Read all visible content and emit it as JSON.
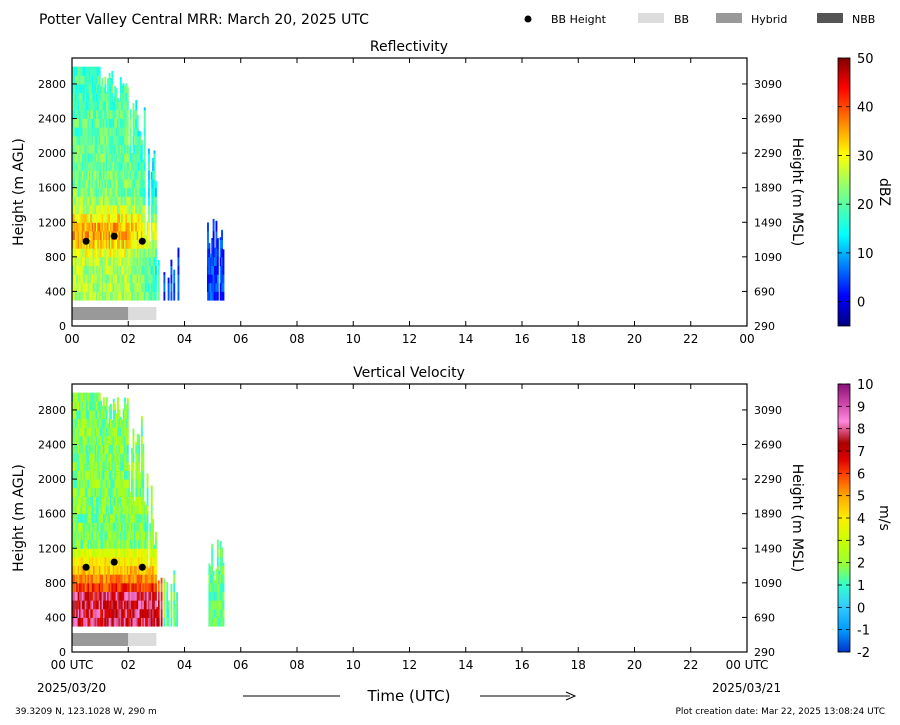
{
  "header": {
    "title": "Potter Valley Central MRR:  March 20, 2025 UTC",
    "legend": [
      {
        "label": "BB Height",
        "kind": "dot",
        "color": "#000000"
      },
      {
        "label": "BB",
        "kind": "patch",
        "color": "#dcdcdc"
      },
      {
        "label": "Hybrid",
        "kind": "patch",
        "color": "#999999"
      },
      {
        "label": "NBB",
        "kind": "patch",
        "color": "#555555"
      }
    ]
  },
  "footer": {
    "location": "39.3209 N, 123.1028 W, 290 m",
    "creation": "Plot creation date: Mar 22, 2025 13:08:24 UTC",
    "xlabel": "Time (UTC)",
    "start_date": "2025/03/20",
    "end_date": "2025/03/21"
  },
  "chart_data": [
    {
      "type": "heatmap",
      "title": "Reflectivity",
      "ylabel": "Height (m AGL)",
      "y2label": "Height (m MSL)",
      "xlim": [
        0,
        24
      ],
      "ylim": [
        0,
        3100
      ],
      "x_ticks": [
        "00",
        "02",
        "04",
        "06",
        "08",
        "10",
        "12",
        "14",
        "16",
        "18",
        "20",
        "22",
        "00"
      ],
      "y_ticks": [
        0,
        400,
        800,
        1200,
        1600,
        2000,
        2400,
        2800
      ],
      "y2_ticks": [
        290,
        690,
        1090,
        1490,
        1890,
        2290,
        2690,
        3090
      ],
      "colorbar": {
        "label": "dBZ",
        "min": -5,
        "max": 50,
        "ticks": [
          0,
          10,
          20,
          30,
          40,
          50
        ],
        "colormap": "jet"
      },
      "bb_height": [
        {
          "time": 0.5,
          "height": 980
        },
        {
          "time": 1.5,
          "height": 1040
        },
        {
          "time": 2.5,
          "height": 980
        }
      ],
      "bb_type": [
        {
          "start": 0.0,
          "end": 2.0,
          "type": "Hybrid"
        },
        {
          "start": 2.0,
          "end": 3.0,
          "type": "BB"
        }
      ]
    },
    {
      "type": "heatmap",
      "title": "Vertical Velocity",
      "ylabel": "Height (m AGL)",
      "y2label": "Height (m MSL)",
      "xlim": [
        0,
        24
      ],
      "ylim": [
        0,
        3100
      ],
      "x_ticks": [
        "00 UTC",
        "02",
        "04",
        "06",
        "08",
        "10",
        "12",
        "14",
        "16",
        "18",
        "20",
        "22",
        "00 UTC"
      ],
      "y_ticks": [
        0,
        400,
        800,
        1200,
        1600,
        2000,
        2400,
        2800
      ],
      "y2_ticks": [
        290,
        690,
        1090,
        1490,
        1890,
        2290,
        2690,
        3090
      ],
      "colorbar": {
        "label": "m/s",
        "min": -2,
        "max": 10,
        "ticks": [
          -2,
          -1,
          0,
          1,
          2,
          3,
          4,
          5,
          6,
          7,
          8,
          9,
          10
        ],
        "colormap": "velocity"
      },
      "bb_height": [
        {
          "time": 0.5,
          "height": 980
        },
        {
          "time": 1.5,
          "height": 1040
        },
        {
          "time": 2.5,
          "height": 980
        }
      ],
      "bb_type": [
        {
          "start": 0.0,
          "end": 2.0,
          "type": "Hybrid"
        },
        {
          "start": 2.0,
          "end": 3.0,
          "type": "BB"
        }
      ]
    }
  ]
}
